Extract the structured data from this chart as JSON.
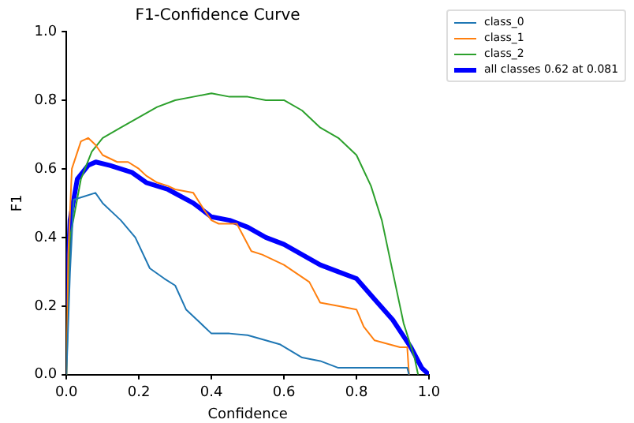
{
  "chart_data": {
    "type": "line",
    "title": "F1-Confidence Curve",
    "xlabel": "Confidence",
    "ylabel": "F1",
    "xlim": [
      0,
      1
    ],
    "ylim": [
      0,
      1
    ],
    "xticks": [
      {
        "value": 0,
        "label": "0.0"
      },
      {
        "value": 0.2,
        "label": "0.2"
      },
      {
        "value": 0.4,
        "label": "0.4"
      },
      {
        "value": 0.6,
        "label": "0.6"
      },
      {
        "value": 0.8,
        "label": "0.8"
      },
      {
        "value": 1,
        "label": "1.0"
      }
    ],
    "yticks": [
      {
        "value": 0,
        "label": "0.0"
      },
      {
        "value": 0.2,
        "label": "0.2"
      },
      {
        "value": 0.4,
        "label": "0.4"
      },
      {
        "value": 0.6,
        "label": "0.6"
      },
      {
        "value": 0.8,
        "label": "0.8"
      },
      {
        "value": 1,
        "label": "1.0"
      }
    ],
    "grid": false,
    "legend": "top right",
    "marker": "none",
    "line_style": "solid",
    "series": [
      {
        "name": "class_0",
        "color": "#1f77b4",
        "x": [
          0,
          0.01,
          0.02,
          0.05,
          0.08,
          0.1,
          0.15,
          0.19,
          0.23,
          0.27,
          0.3,
          0.33,
          0.37,
          0.4,
          0.45,
          0.5,
          0.55,
          0.59,
          0.65,
          0.7,
          0.75,
          0.8,
          0.9,
          0.94,
          0.945
        ],
        "values": [
          0,
          0.3,
          0.51,
          0.52,
          0.53,
          0.5,
          0.45,
          0.4,
          0.31,
          0.28,
          0.26,
          0.19,
          0.15,
          0.12,
          0.12,
          0.115,
          0.1,
          0.088,
          0.05,
          0.04,
          0.02,
          0.02,
          0.02,
          0.02,
          0
        ]
      },
      {
        "name": "class_1",
        "color": "#ff7f0e",
        "x": [
          0,
          0.005,
          0.015,
          0.04,
          0.06,
          0.08,
          0.1,
          0.14,
          0.17,
          0.2,
          0.22,
          0.25,
          0.28,
          0.3,
          0.35,
          0.38,
          0.4,
          0.42,
          0.47,
          0.51,
          0.54,
          0.6,
          0.67,
          0.7,
          0.75,
          0.8,
          0.82,
          0.85,
          0.92,
          0.94,
          0.945
        ],
        "values": [
          0,
          0.35,
          0.6,
          0.68,
          0.69,
          0.67,
          0.64,
          0.62,
          0.62,
          0.6,
          0.58,
          0.56,
          0.55,
          0.54,
          0.53,
          0.48,
          0.45,
          0.44,
          0.44,
          0.36,
          0.35,
          0.32,
          0.27,
          0.21,
          0.2,
          0.19,
          0.14,
          0.1,
          0.08,
          0.08,
          0
        ]
      },
      {
        "name": "class_2",
        "color": "#2ca02c",
        "x": [
          0,
          0.01,
          0.04,
          0.07,
          0.1,
          0.15,
          0.2,
          0.25,
          0.3,
          0.35,
          0.4,
          0.45,
          0.5,
          0.55,
          0.6,
          0.65,
          0.7,
          0.75,
          0.8,
          0.84,
          0.87,
          0.9,
          0.93,
          0.96,
          0.97
        ],
        "values": [
          0,
          0.4,
          0.57,
          0.65,
          0.69,
          0.72,
          0.75,
          0.78,
          0.8,
          0.81,
          0.82,
          0.81,
          0.81,
          0.8,
          0.8,
          0.77,
          0.72,
          0.69,
          0.64,
          0.55,
          0.45,
          0.3,
          0.15,
          0.05,
          0
        ]
      },
      {
        "name": "all classes 0.62 at 0.081",
        "color": "#0000ff",
        "x": [
          0,
          0.01,
          0.03,
          0.06,
          0.081,
          0.12,
          0.18,
          0.22,
          0.28,
          0.35,
          0.4,
          0.45,
          0.5,
          0.55,
          0.6,
          0.65,
          0.7,
          0.75,
          0.8,
          0.85,
          0.9,
          0.95,
          0.98,
          1
        ],
        "values": [
          0.2,
          0.45,
          0.57,
          0.61,
          0.62,
          0.61,
          0.59,
          0.56,
          0.54,
          0.5,
          0.46,
          0.45,
          0.43,
          0.4,
          0.38,
          0.35,
          0.32,
          0.3,
          0.28,
          0.22,
          0.16,
          0.08,
          0.02,
          0
        ]
      }
    ]
  }
}
